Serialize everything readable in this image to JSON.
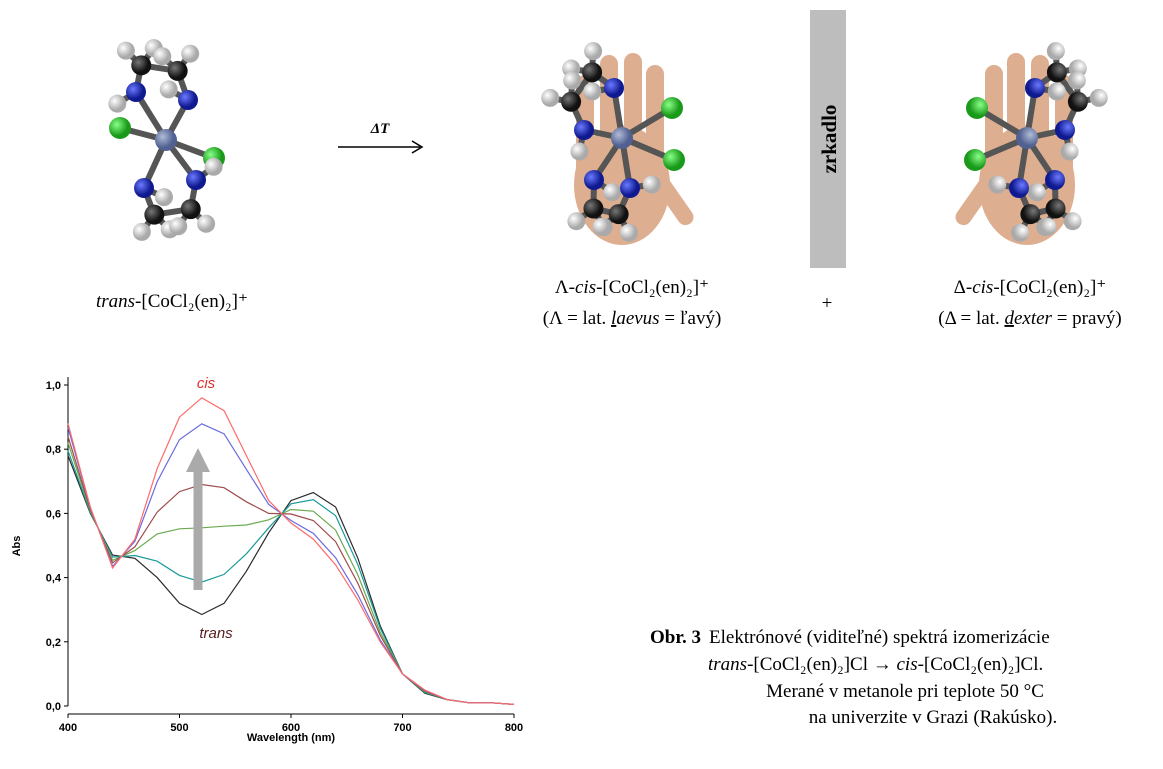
{
  "figure": {
    "reaction_label": "ΔT",
    "trans_label": {
      "prefix": "trans",
      "formula": "-[CoCl₂(en)₂]⁺"
    },
    "lambda_label": {
      "line1": {
        "symbol": "Λ-",
        "prefix": "cis",
        "formula": "-[CoCl₂(en)₂]⁺"
      },
      "line2": {
        "start": "(Λ = lat. ",
        "initial": "l",
        "rest": "aevus",
        "end": " = ľavý)"
      }
    },
    "plus": "+",
    "mirror": "zrkadlo",
    "delta_label": {
      "line1": {
        "symbol": "Δ-",
        "prefix": "cis",
        "formula": "-[CoCl₂(en)₂]⁺"
      },
      "line2": {
        "start": "(Δ = lat. ",
        "initial": "d",
        "rest": "exter",
        "end": " = pravý)"
      }
    },
    "caption": {
      "number": "Obr. 3",
      "line1": "Elektrónové (viditeľné) spektrá izomerizácie",
      "line2": {
        "a": "trans",
        "b": "-[CoCl₂(en)₂]Cl → ",
        "c": "cis",
        "d": "-[CoCl₂(en)₂]Cl."
      },
      "line3": "Merané v metanole pri teplote 50 °C",
      "line4": "na univerzite v Grazi (Rakúsko)."
    }
  },
  "chart_data": {
    "type": "line",
    "x_label": "Wavelength (nm)",
    "y_label": "Abs",
    "annotations": [
      "cis",
      "trans"
    ],
    "x": [
      400,
      420,
      440,
      460,
      480,
      500,
      520,
      540,
      560,
      580,
      600,
      620,
      640,
      660,
      680,
      700,
      720,
      740,
      760,
      780,
      800
    ],
    "xlim": [
      400,
      800
    ],
    "xticks": [
      400,
      500,
      600,
      700,
      800
    ],
    "ylim": [
      0,
      1.0
    ],
    "yticks": [
      {
        "value": 0,
        "label": "0,0"
      },
      {
        "value": 0.2,
        "label": "0,2"
      },
      {
        "value": 0.4,
        "label": "0,4"
      },
      {
        "value": 0.6,
        "label": "0,6"
      },
      {
        "value": 0.8,
        "label": "0,8"
      },
      {
        "value": 1.0,
        "label": "1,0"
      }
    ],
    "grid": false,
    "series": [
      {
        "color": "#2a2a2a",
        "values": [
          0.78,
          0.6,
          0.47,
          0.46,
          0.4,
          0.32,
          0.285,
          0.32,
          0.42,
          0.54,
          0.64,
          0.665,
          0.62,
          0.46,
          0.25,
          0.1,
          0.04,
          0.02,
          0.01,
          0.01,
          0.005
        ]
      },
      {
        "color": "#1a9a9a",
        "values": [
          0.795,
          0.603,
          0.464,
          0.469,
          0.451,
          0.407,
          0.386,
          0.41,
          0.474,
          0.555,
          0.63,
          0.643,
          0.593,
          0.44,
          0.243,
          0.1,
          0.042,
          0.02,
          0.01,
          0.01,
          0.005
        ]
      },
      {
        "color": "#6aaa50",
        "values": [
          0.82,
          0.608,
          0.454,
          0.484,
          0.536,
          0.552,
          0.555,
          0.56,
          0.564,
          0.58,
          0.612,
          0.607,
          0.548,
          0.408,
          0.23,
          0.1,
          0.044,
          0.02,
          0.01,
          0.01,
          0.005
        ]
      },
      {
        "color": "#a04a4a",
        "values": [
          0.84,
          0.612,
          0.446,
          0.496,
          0.604,
          0.668,
          0.69,
          0.68,
          0.636,
          0.6,
          0.598,
          0.578,
          0.512,
          0.382,
          0.22,
          0.1,
          0.046,
          0.02,
          0.01,
          0.01,
          0.005
        ]
      },
      {
        "color": "#6a6adf",
        "values": [
          0.868,
          0.618,
          0.435,
          0.513,
          0.699,
          0.83,
          0.879,
          0.848,
          0.737,
          0.628,
          0.578,
          0.538,
          0.462,
          0.346,
          0.206,
          0.1,
          0.049,
          0.02,
          0.01,
          0.01,
          0.005
        ]
      },
      {
        "color": "#ff6a6a",
        "values": [
          0.88,
          0.62,
          0.43,
          0.52,
          0.74,
          0.9,
          0.96,
          0.92,
          0.78,
          0.64,
          0.57,
          0.52,
          0.44,
          0.33,
          0.2,
          0.1,
          0.05,
          0.02,
          0.01,
          0.01,
          0.005
        ]
      }
    ]
  }
}
